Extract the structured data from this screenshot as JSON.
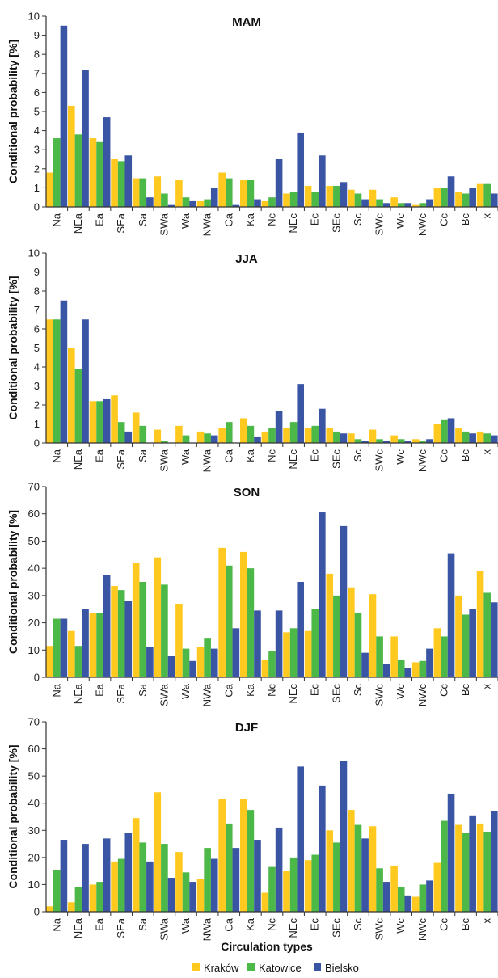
{
  "chart_data": [
    {
      "type": "bar",
      "title": "MAM",
      "ylabel": "Conditional probability [%]",
      "xlabel": "",
      "ylim": [
        0,
        10
      ],
      "yticks": [
        0,
        1,
        2,
        3,
        4,
        5,
        6,
        7,
        8,
        9,
        10
      ],
      "categories": [
        "Na",
        "NEa",
        "Ea",
        "SEa",
        "Sa",
        "SWa",
        "Wa",
        "NWa",
        "Ca",
        "Ka",
        "Nc",
        "NEc",
        "Ec",
        "SEc",
        "Sc",
        "SWc",
        "Wc",
        "NWc",
        "Cc",
        "Bc",
        "x"
      ],
      "series": [
        {
          "name": "Kraków",
          "values": [
            1.8,
            5.3,
            3.6,
            2.5,
            1.5,
            1.6,
            1.4,
            0.3,
            1.8,
            1.4,
            0.3,
            0.7,
            1.1,
            1.1,
            0.9,
            0.9,
            0.5,
            0.1,
            1.0,
            0.8,
            1.2
          ]
        },
        {
          "name": "Katowice",
          "values": [
            3.6,
            3.8,
            3.4,
            2.4,
            1.5,
            0.7,
            0.5,
            0.4,
            1.5,
            1.4,
            0.5,
            0.8,
            0.8,
            1.1,
            0.7,
            0.4,
            0.2,
            0.2,
            1.0,
            0.7,
            1.2
          ]
        },
        {
          "name": "Bielsko",
          "values": [
            9.5,
            7.2,
            4.7,
            2.7,
            0.5,
            0.1,
            0.3,
            1.0,
            0.1,
            0.4,
            2.5,
            3.9,
            2.7,
            1.3,
            0.4,
            0.2,
            0.2,
            0.4,
            1.6,
            1.0,
            0.7
          ]
        }
      ]
    },
    {
      "type": "bar",
      "title": "JJA",
      "ylabel": "Conditional probability [%]",
      "xlabel": "",
      "ylim": [
        0,
        10
      ],
      "yticks": [
        0,
        1,
        2,
        3,
        4,
        5,
        6,
        7,
        8,
        9,
        10
      ],
      "categories": [
        "Na",
        "NEa",
        "Ea",
        "SEa",
        "Sa",
        "SWa",
        "Wa",
        "NWa",
        "Ca",
        "Ka",
        "Nc",
        "NEc",
        "Ec",
        "SEc",
        "Sc",
        "SWc",
        "Wc",
        "NWc",
        "Cc",
        "Bc",
        "x"
      ],
      "series": [
        {
          "name": "Kraków",
          "values": [
            6.5,
            5.0,
            2.2,
            2.5,
            1.6,
            0.7,
            0.9,
            0.6,
            0.8,
            1.3,
            0.6,
            0.8,
            0.8,
            0.8,
            0.5,
            0.7,
            0.4,
            0.2,
            1.0,
            0.8,
            0.6
          ]
        },
        {
          "name": "Katowice",
          "values": [
            6.5,
            3.9,
            2.2,
            1.1,
            0.9,
            0.1,
            0.4,
            0.5,
            1.1,
            0.9,
            0.8,
            1.1,
            0.9,
            0.6,
            0.2,
            0.2,
            0.2,
            0.1,
            1.2,
            0.6,
            0.5
          ]
        },
        {
          "name": "Bielsko",
          "values": [
            7.5,
            6.5,
            2.3,
            0.6,
            0.0,
            0.0,
            0.0,
            0.4,
            0.0,
            0.3,
            1.7,
            3.1,
            1.8,
            0.5,
            0.1,
            0.1,
            0.1,
            0.2,
            1.3,
            0.5,
            0.4
          ]
        }
      ]
    },
    {
      "type": "bar",
      "title": "SON",
      "ylabel": "Conditional probability [%]",
      "xlabel": "",
      "ylim": [
        0,
        70
      ],
      "yticks": [
        0,
        10,
        20,
        30,
        40,
        50,
        60,
        70
      ],
      "categories": [
        "Na",
        "NEa",
        "Ea",
        "SEa",
        "Sa",
        "SWa",
        "Wa",
        "NWa",
        "Ca",
        "Ka",
        "Nc",
        "NEc",
        "Ec",
        "SEc",
        "Sc",
        "SWc",
        "Wc",
        "NWc",
        "Cc",
        "Bc",
        "x"
      ],
      "series": [
        {
          "name": "Kraków",
          "values": [
            11.5,
            17,
            23.5,
            33.5,
            42,
            44,
            27,
            11,
            47.5,
            46,
            6.5,
            16.5,
            17,
            38,
            33,
            30.5,
            15,
            5.5,
            18,
            30,
            39
          ]
        },
        {
          "name": "Katowice",
          "values": [
            21.5,
            11.5,
            23.5,
            32,
            35,
            34,
            10.5,
            14.5,
            41,
            40,
            9.5,
            18,
            25,
            30,
            23.5,
            15,
            6.5,
            6,
            15,
            23,
            31
          ]
        },
        {
          "name": "Bielsko",
          "values": [
            21.5,
            25,
            37.5,
            28,
            11,
            8,
            6,
            10.5,
            18,
            24.5,
            24.5,
            35,
            60.5,
            55.5,
            9,
            5,
            3.5,
            10.5,
            45.5,
            25,
            27.5
          ]
        }
      ]
    },
    {
      "type": "bar",
      "title": "DJF",
      "ylabel": "Conditional probability [%]",
      "xlabel": "Circulation types",
      "ylim": [
        0,
        70
      ],
      "yticks": [
        0,
        10,
        20,
        30,
        40,
        50,
        60,
        70
      ],
      "categories": [
        "Na",
        "NEa",
        "Ea",
        "SEa",
        "Sa",
        "SWa",
        "Wa",
        "NWa",
        "Ca",
        "Ka",
        "Nc",
        "NEc",
        "Ec",
        "SEc",
        "Sc",
        "SWc",
        "Wc",
        "NWc",
        "Cc",
        "Bc",
        "x"
      ],
      "series": [
        {
          "name": "Kraków",
          "values": [
            2,
            3.5,
            10,
            18.5,
            34.5,
            44,
            22,
            12,
            41.5,
            41.5,
            7,
            15,
            19,
            30,
            37.5,
            31.5,
            17,
            5.5,
            18,
            32,
            32.5
          ]
        },
        {
          "name": "Katowice",
          "values": [
            15.5,
            9,
            11,
            19.5,
            25.5,
            25,
            14.5,
            23.5,
            32.5,
            37.5,
            16.5,
            20,
            21,
            25.5,
            32,
            16,
            9,
            10,
            33.5,
            29,
            29.5
          ]
        },
        {
          "name": "Bielsko",
          "values": [
            26.5,
            25,
            27,
            29,
            18.5,
            12.5,
            11,
            19.5,
            23.5,
            26.5,
            31,
            53.5,
            46.5,
            55.5,
            27,
            11,
            6,
            11.5,
            43.5,
            35.5,
            37
          ]
        }
      ]
    }
  ],
  "legend": {
    "items": [
      {
        "label": "Kraków",
        "color": "#FFC91F"
      },
      {
        "label": "Katowice",
        "color": "#4CB848"
      },
      {
        "label": "Bielsko",
        "color": "#3A55A4"
      }
    ]
  },
  "colors": {
    "Kraków": "#FFC91F",
    "Katowice": "#4CB848",
    "Bielsko": "#3A55A4",
    "axis": "#333333"
  }
}
